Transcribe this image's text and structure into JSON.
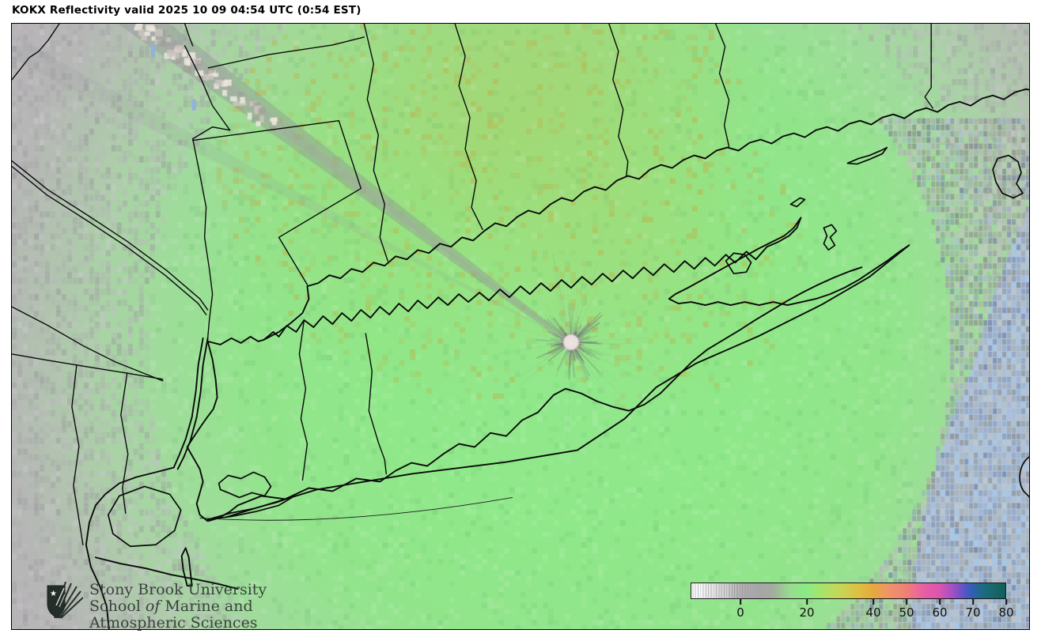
{
  "title": "KOKX Reflectivity valid 2025 10 09 04:54 UTC (0:54 EST)",
  "radar": {
    "station": "KOKX",
    "product": "Reflectivity",
    "valid_date": "2025 10 09",
    "valid_time_utc": "04:54 UTC",
    "valid_time_local": "0:54 EST"
  },
  "branding": {
    "line1": "Stony Brook University",
    "line2_before": "School ",
    "line2_italic": "of",
    "line2_after": " Marine and",
    "line3": "Atmospheric Sciences"
  },
  "colorbar": {
    "tick_values": [
      0,
      20,
      40,
      50,
      60,
      70,
      80
    ],
    "value_min": -15,
    "value_max": 80,
    "gradient_stops": [
      [
        0,
        "#ffffff"
      ],
      [
        4,
        "#f2f0f2"
      ],
      [
        10,
        "#d9d6d9"
      ],
      [
        15.8,
        "#b3b0b3"
      ],
      [
        21,
        "#a8a5a8"
      ],
      [
        26,
        "#a3ac9f"
      ],
      [
        31.6,
        "#97dd8f"
      ],
      [
        36.8,
        "#8bea84"
      ],
      [
        42,
        "#a9e369"
      ],
      [
        47.4,
        "#c7d556"
      ],
      [
        52.6,
        "#dcc244"
      ],
      [
        57.9,
        "#e5a93d"
      ],
      [
        63.2,
        "#f0926a"
      ],
      [
        68.4,
        "#ee8173"
      ],
      [
        71.5,
        "#ec6d95"
      ],
      [
        74,
        "#e75fa5"
      ],
      [
        78.9,
        "#dc55ae"
      ],
      [
        81.5,
        "#b953be"
      ],
      [
        84.2,
        "#8f50c4"
      ],
      [
        86.8,
        "#5a55cb"
      ],
      [
        89.5,
        "#2f5fb0"
      ],
      [
        92,
        "#20698c"
      ],
      [
        94.7,
        "#1a6a74"
      ],
      [
        100,
        "#0f5f58"
      ]
    ]
  },
  "colors": {
    "field_green": "#8fe889",
    "field_gray": "#b9b5b9",
    "ocean_blue": "#a9c6e2",
    "clutter_white": "#e9dedd",
    "speckle_yellow": "#cb9e34",
    "boundary_black": "#0a0a0a",
    "streak_gray": "#928f96"
  }
}
